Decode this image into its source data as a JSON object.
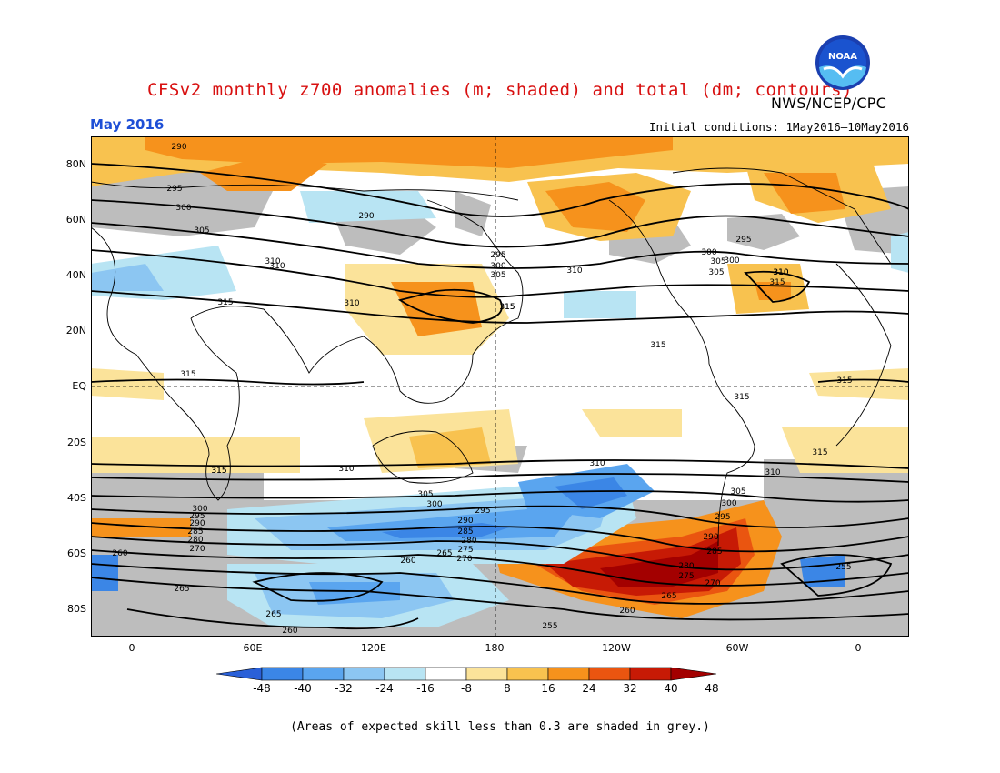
{
  "header": {
    "title": "CFSv2 monthly z700 anomalies (m; shaded) and total (dm; contours)",
    "agency": "NWS/NCEP/CPC",
    "month": "May 2016",
    "initial_conditions": "Initial conditions: 1May2016—10May2016"
  },
  "logo": {
    "text": "NOAA"
  },
  "map": {
    "lat_labels": [
      "80N",
      "60N",
      "40N",
      "20N",
      "EQ",
      "20S",
      "40S",
      "60S",
      "80S"
    ],
    "lon_labels": [
      "0",
      "60E",
      "120E",
      "180",
      "120W",
      "60W",
      "0"
    ],
    "contour_labels": {
      "north": [
        "290",
        "295",
        "300",
        "305",
        "310",
        "315",
        "300",
        "305",
        "310",
        "310",
        "295",
        "300",
        "305",
        "310",
        "290",
        "300",
        "305",
        "310",
        "315",
        "315",
        "315",
        "295",
        "310",
        "315"
      ],
      "tropics": [
        "315",
        "315",
        "315",
        "315",
        "315"
      ],
      "south": [
        "315",
        "310",
        "310",
        "310",
        "305",
        "300",
        "295",
        "290",
        "285",
        "280",
        "275",
        "270",
        "265",
        "260",
        "255",
        "305",
        "300",
        "295",
        "290",
        "285",
        "280",
        "275",
        "270",
        "265",
        "260",
        "255",
        "260",
        "265",
        "260",
        "300",
        "295",
        "290",
        "285",
        "280",
        "270",
        "265"
      ]
    }
  },
  "colorbar": {
    "labels": [
      "-48",
      "-40",
      "-32",
      "-24",
      "-16",
      "-8",
      "8",
      "16",
      "24",
      "32",
      "40",
      "48"
    ],
    "colors": [
      "#2a60d8",
      "#3b86e6",
      "#5aa5ef",
      "#8cc6f2",
      "#b8e4f3",
      "#ffffff",
      "#fbe39a",
      "#f8c24f",
      "#f6921c",
      "#ea5510",
      "#c71a05",
      "#a30000"
    ]
  },
  "footnote": "(Areas of expected skill less than 0.3 are shaded in grey.)",
  "colors": {
    "title": "#d81010",
    "month": "#1e4fd6",
    "grey_mask": "#bdbdbd"
  }
}
